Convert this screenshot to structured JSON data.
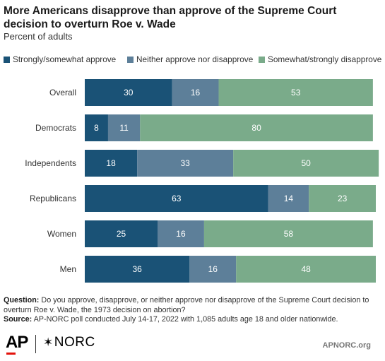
{
  "title": "More Americans disapprove than approve of the Supreme Court decision to overturn Roe v. Wade",
  "subtitle": "Percent of adults",
  "legend": [
    {
      "label": "Strongly/somewhat approve",
      "color": "#1a5276"
    },
    {
      "label": "Neither approve nor disapprove",
      "color": "#5d7f99"
    },
    {
      "label": "Somewhat/strongly disapprove",
      "color": "#7aab8a"
    }
  ],
  "chart_data": {
    "type": "bar",
    "orientation": "horizontal",
    "stacked": true,
    "categories": [
      "Overall",
      "Democrats",
      "Independents",
      "Republicans",
      "Women",
      "Men"
    ],
    "series": [
      {
        "name": "Strongly/somewhat approve",
        "values": [
          30,
          8,
          18,
          63,
          25,
          36
        ]
      },
      {
        "name": "Neither approve nor disapprove",
        "values": [
          16,
          11,
          33,
          14,
          16,
          16
        ]
      },
      {
        "name": "Somewhat/strongly disapprove",
        "values": [
          53,
          80,
          50,
          23,
          58,
          48
        ]
      }
    ],
    "colors": [
      "#1a5276",
      "#5d7f99",
      "#7aab8a"
    ],
    "title": "More Americans disapprove than approve of the Supreme Court decision to overturn Roe v. Wade",
    "subtitle": "Percent of adults",
    "xlim": [
      0,
      100
    ],
    "grid": false,
    "legend_position": "top"
  },
  "note": {
    "question_label": "Question:",
    "question_text": "Do you approve, disapprove, or neither approve nor disapprove of the Supreme Court decision to overturn Roe v. Wade, the 1973 decision on abortion?",
    "source_label": "Source:",
    "source_text": "AP-NORC poll conducted July 14-17, 2022 with 1,085 adults age 18 and older nationwide."
  },
  "footer": {
    "ap_logo": "AP",
    "norc_star": "✶",
    "norc_logo": "NORC",
    "site": "APNORC.org"
  }
}
